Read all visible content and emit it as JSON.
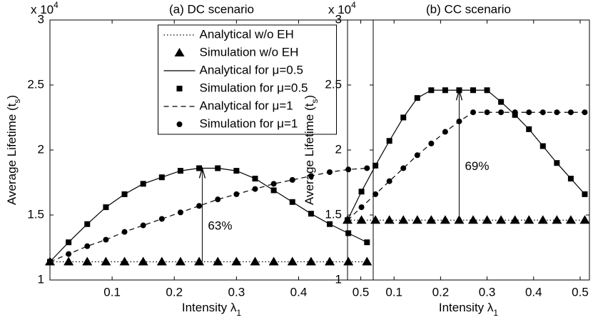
{
  "chart_data": [
    {
      "type": "line",
      "title": "(a) DC scenario",
      "xlabel": [
        "Intensity λ",
        "1"
      ],
      "ylabel": [
        "Average Lifetime (t",
        "s",
        ")"
      ],
      "y_multiplier": [
        "x 10",
        "4"
      ],
      "x": [
        0,
        0.03,
        0.06,
        0.09,
        0.12,
        0.15,
        0.18,
        0.21,
        0.24,
        0.27,
        0.3,
        0.33,
        0.36,
        0.39,
        0.42,
        0.45,
        0.48,
        0.51
      ],
      "xlim": [
        0,
        0.52
      ],
      "xticks": [
        0.1,
        0.2,
        0.3,
        0.4,
        0.5
      ],
      "ylim": [
        1,
        3
      ],
      "yticks": [
        1,
        1.5,
        2,
        2.5,
        3
      ],
      "legend": "upper center",
      "series": [
        {
          "name": "Analytical w/o EH",
          "color": "#000000",
          "style": "dotted",
          "values": [
            1.14,
            1.14,
            1.14,
            1.14,
            1.14,
            1.14,
            1.14,
            1.14,
            1.14,
            1.14,
            1.14,
            1.14,
            1.14,
            1.14,
            1.14,
            1.14,
            1.14,
            1.14
          ]
        },
        {
          "name": "Simulation w/o EH",
          "color": "#000000",
          "marker": "triangle",
          "values": [
            1.14,
            1.14,
            1.14,
            1.14,
            1.14,
            1.14,
            1.14,
            1.14,
            1.14,
            1.14,
            1.14,
            1.14,
            1.14,
            1.14,
            1.14,
            1.14,
            1.14,
            1.14
          ]
        },
        {
          "name": "Analytical for μ=0.5",
          "color": "#000000",
          "style": "solid",
          "values": [
            1.14,
            1.29,
            1.43,
            1.56,
            1.66,
            1.74,
            1.79,
            1.84,
            1.86,
            1.86,
            1.84,
            1.78,
            1.69,
            1.6,
            1.51,
            1.43,
            1.36,
            1.29
          ]
        },
        {
          "name": "Simulation for μ=0.5",
          "color": "#000000",
          "marker": "square",
          "values": [
            1.14,
            1.29,
            1.43,
            1.56,
            1.66,
            1.74,
            1.79,
            1.84,
            1.86,
            1.86,
            1.84,
            1.78,
            1.69,
            1.6,
            1.51,
            1.43,
            1.36,
            1.29
          ]
        },
        {
          "name": "Analytical for μ=1",
          "color": "#000000",
          "style": "dashed",
          "values": [
            1.14,
            1.2,
            1.26,
            1.31,
            1.37,
            1.42,
            1.47,
            1.52,
            1.57,
            1.62,
            1.66,
            1.7,
            1.74,
            1.77,
            1.8,
            1.83,
            1.85,
            1.86
          ]
        },
        {
          "name": "Simulation for μ=1",
          "color": "#000000",
          "marker": "circle",
          "values": [
            1.14,
            1.2,
            1.26,
            1.31,
            1.37,
            1.42,
            1.47,
            1.52,
            1.57,
            1.62,
            1.66,
            1.7,
            1.74,
            1.77,
            1.8,
            1.83,
            1.85,
            1.86
          ]
        }
      ],
      "annotation": {
        "text": "63%",
        "x": 0.245,
        "y_from": 1.14,
        "y_to": 1.86
      }
    },
    {
      "type": "line",
      "title": "(b) CC scenario",
      "xlabel": [
        "Intensity λ",
        "1"
      ],
      "ylabel": [
        "Average Lifetime (t",
        "s",
        ")"
      ],
      "y_multiplier": [
        "x 10",
        "4"
      ],
      "x": [
        0,
        0.03,
        0.06,
        0.09,
        0.12,
        0.15,
        0.18,
        0.21,
        0.24,
        0.27,
        0.3,
        0.33,
        0.36,
        0.39,
        0.42,
        0.45,
        0.48,
        0.51
      ],
      "xlim": [
        0,
        0.52
      ],
      "xticks": [
        0.1,
        0.2,
        0.3,
        0.4,
        0.5
      ],
      "ylim": [
        1,
        3
      ],
      "yticks": [
        1,
        1.5,
        2,
        2.5,
        3
      ],
      "series": [
        {
          "color": "#000000",
          "style": "dotted",
          "values": [
            1.46,
            1.46,
            1.46,
            1.46,
            1.46,
            1.46,
            1.46,
            1.46,
            1.46,
            1.46,
            1.46,
            1.46,
            1.46,
            1.46,
            1.46,
            1.46,
            1.46,
            1.46
          ]
        },
        {
          "color": "#000000",
          "marker": "triangle",
          "values": [
            1.46,
            1.46,
            1.46,
            1.46,
            1.46,
            1.46,
            1.46,
            1.46,
            1.46,
            1.46,
            1.46,
            1.46,
            1.46,
            1.46,
            1.46,
            1.46,
            1.46,
            1.46
          ]
        },
        {
          "color": "#000000",
          "style": "solid",
          "values": [
            1.46,
            1.68,
            1.88,
            2.07,
            2.25,
            2.4,
            2.46,
            2.46,
            2.46,
            2.46,
            2.46,
            2.37,
            2.27,
            2.16,
            2.03,
            1.9,
            1.78,
            1.66
          ]
        },
        {
          "color": "#000000",
          "marker": "square",
          "values": [
            1.46,
            1.68,
            1.88,
            2.07,
            2.25,
            2.4,
            2.46,
            2.46,
            2.46,
            2.46,
            2.46,
            2.37,
            2.27,
            2.16,
            2.03,
            1.9,
            1.78,
            1.66
          ]
        },
        {
          "color": "#000000",
          "style": "dashed",
          "values": [
            1.46,
            1.56,
            1.66,
            1.76,
            1.86,
            1.96,
            2.05,
            2.14,
            2.22,
            2.29,
            2.29,
            2.29,
            2.29,
            2.29,
            2.29,
            2.29,
            2.29,
            2.29
          ]
        },
        {
          "color": "#000000",
          "marker": "circle",
          "values": [
            1.46,
            1.56,
            1.66,
            1.76,
            1.86,
            1.96,
            2.05,
            2.14,
            2.22,
            2.29,
            2.29,
            2.29,
            2.29,
            2.29,
            2.29,
            2.29,
            2.29,
            2.29
          ]
        }
      ],
      "annotation": {
        "text": "69%",
        "x": 0.24,
        "y_from": 1.46,
        "y_to": 2.46
      }
    }
  ]
}
